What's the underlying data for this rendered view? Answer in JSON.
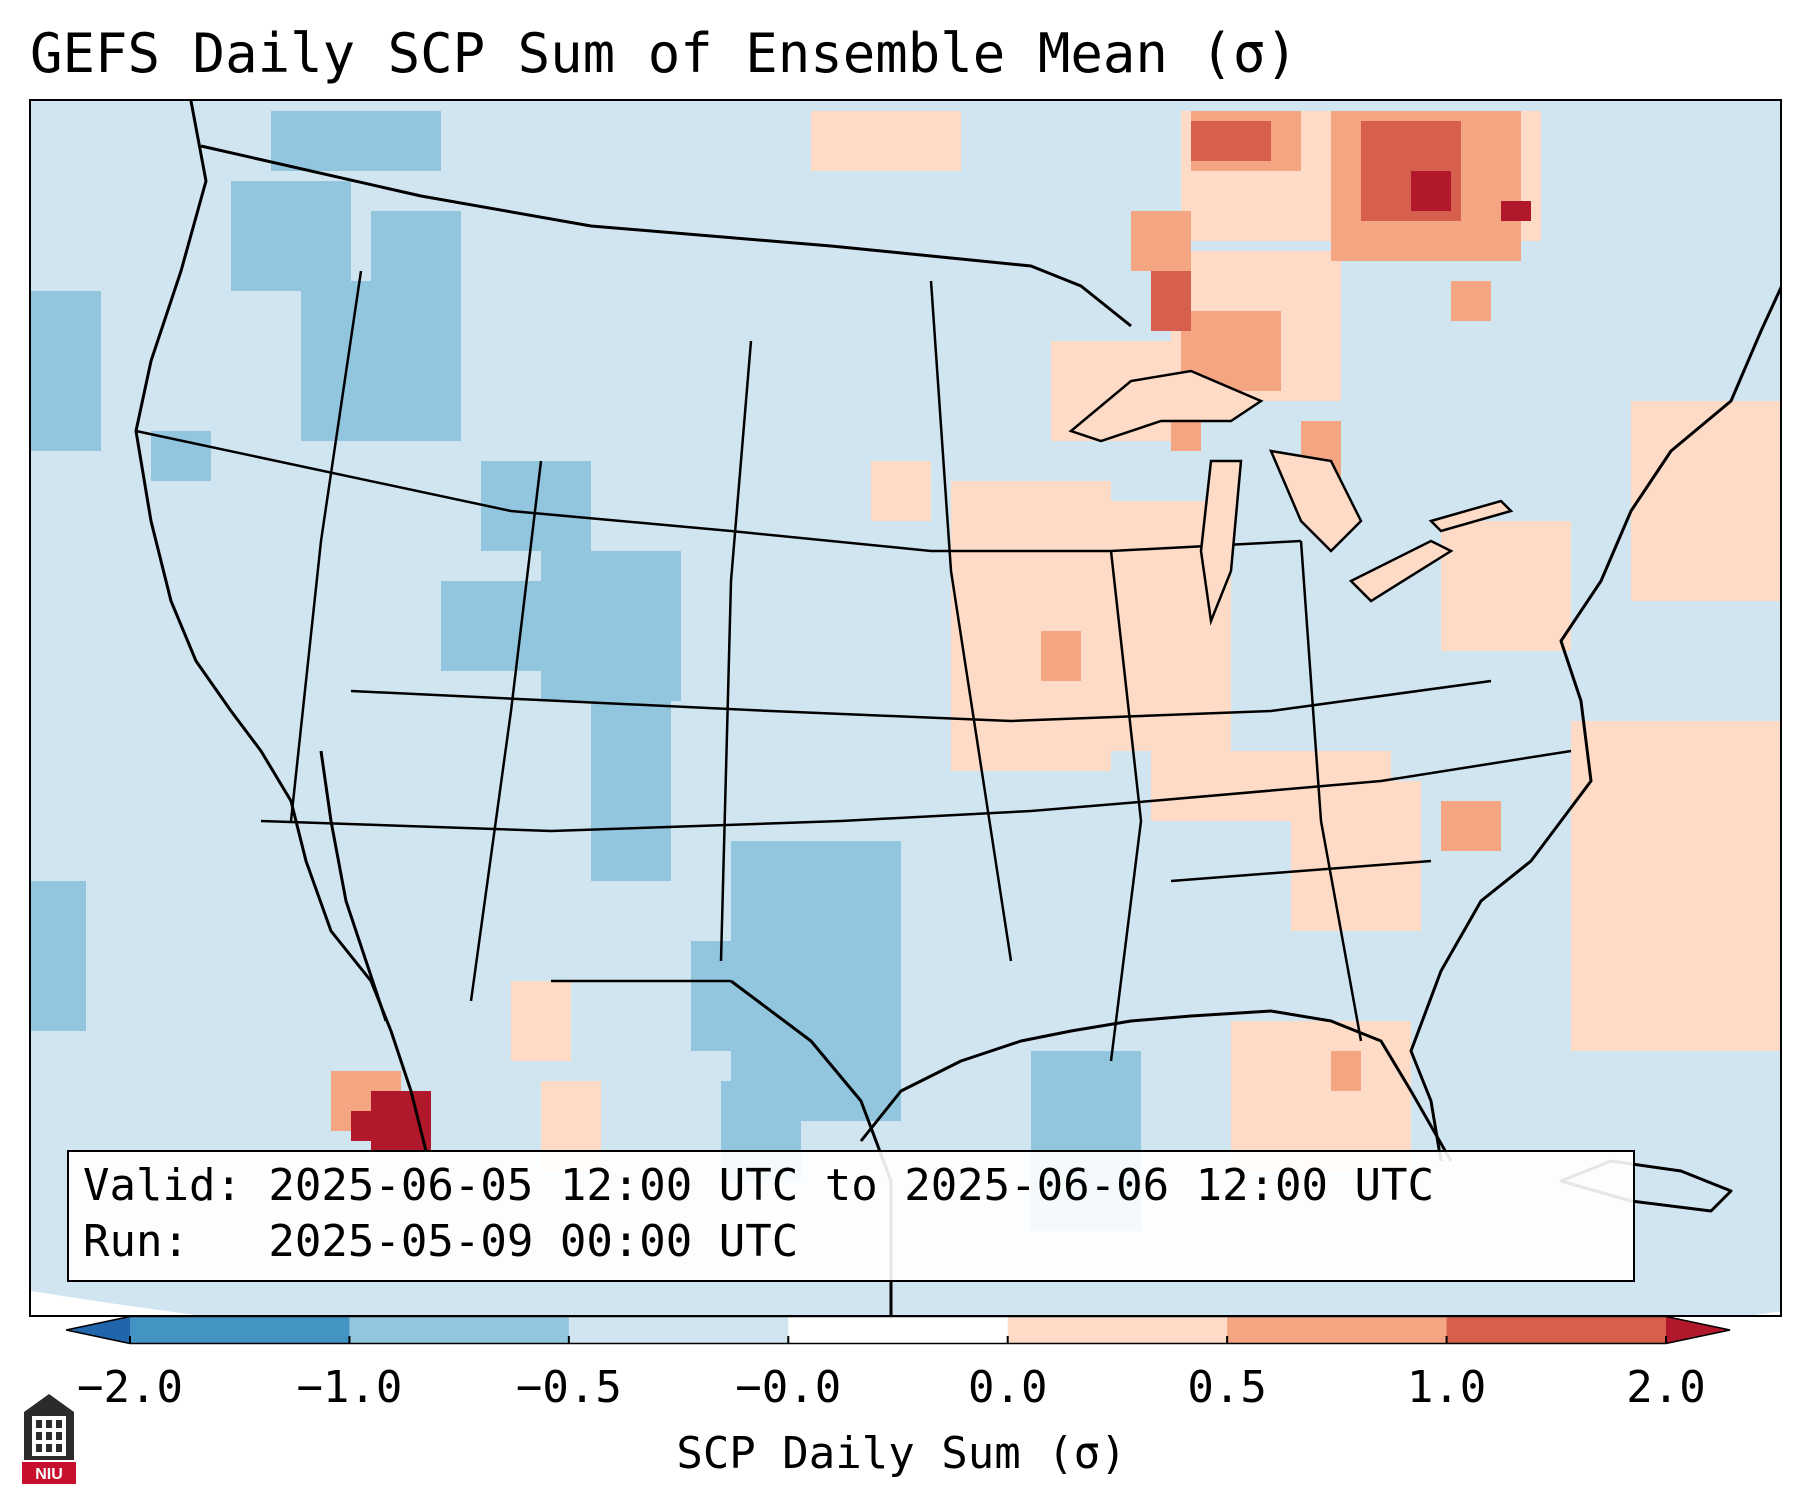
{
  "title": "GEFS Daily SCP Sum of Ensemble Mean (σ)",
  "info": {
    "valid": "Valid: 2025-06-05 12:00 UTC to 2025-06-06 12:00 UTC",
    "run": "Run:   2025-05-09 00:00 UTC"
  },
  "colorbar": {
    "label": "SCP Daily Sum (σ)",
    "ticks": [
      "−2.0",
      "−1.0",
      "−0.5",
      "−0.0",
      "0.0",
      "0.5",
      "1.0",
      "2.0"
    ],
    "colors": {
      "under": "#2166ac",
      "bins": [
        "#4393c3",
        "#92c5de",
        "#d1e5f0",
        "#ffffff",
        "#fddbc7",
        "#f4a582",
        "#d6604d"
      ],
      "over": "#b2182b"
    }
  },
  "logo": {
    "text": "NIU",
    "icon": "university-building-icon",
    "color": "#c8102e"
  }
}
